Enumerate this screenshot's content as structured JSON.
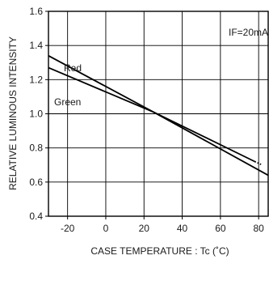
{
  "chart_data": {
    "type": "line",
    "xlabel": "CASE TEMPERATURE : Tc (˚C)",
    "ylabel": "RELATIVE LUMINOUS INTENSITY",
    "annotation": "IF=20mA",
    "xlim": [
      -30,
      85
    ],
    "ylim": [
      0.4,
      1.6
    ],
    "xticks": [
      -20,
      0,
      20,
      40,
      60,
      80
    ],
    "yticks": [
      0.4,
      0.6,
      0.8,
      1.0,
      1.2,
      1.4,
      1.6
    ],
    "ytick_labels": [
      "0.4",
      "0.6",
      "0.8",
      "1.0",
      "1.2",
      "1.4",
      "1.6"
    ],
    "grid": true,
    "series": [
      {
        "name": "Red",
        "x": [
          -30,
          25,
          78
        ],
        "y": [
          1.34,
          1.01,
          0.72
        ],
        "dotted_extension": {
          "x": [
            78,
            82
          ],
          "y": [
            0.72,
            0.7
          ]
        }
      },
      {
        "name": "Green",
        "x": [
          -30,
          25,
          85
        ],
        "y": [
          1.27,
          1.01,
          0.64
        ]
      }
    ]
  }
}
